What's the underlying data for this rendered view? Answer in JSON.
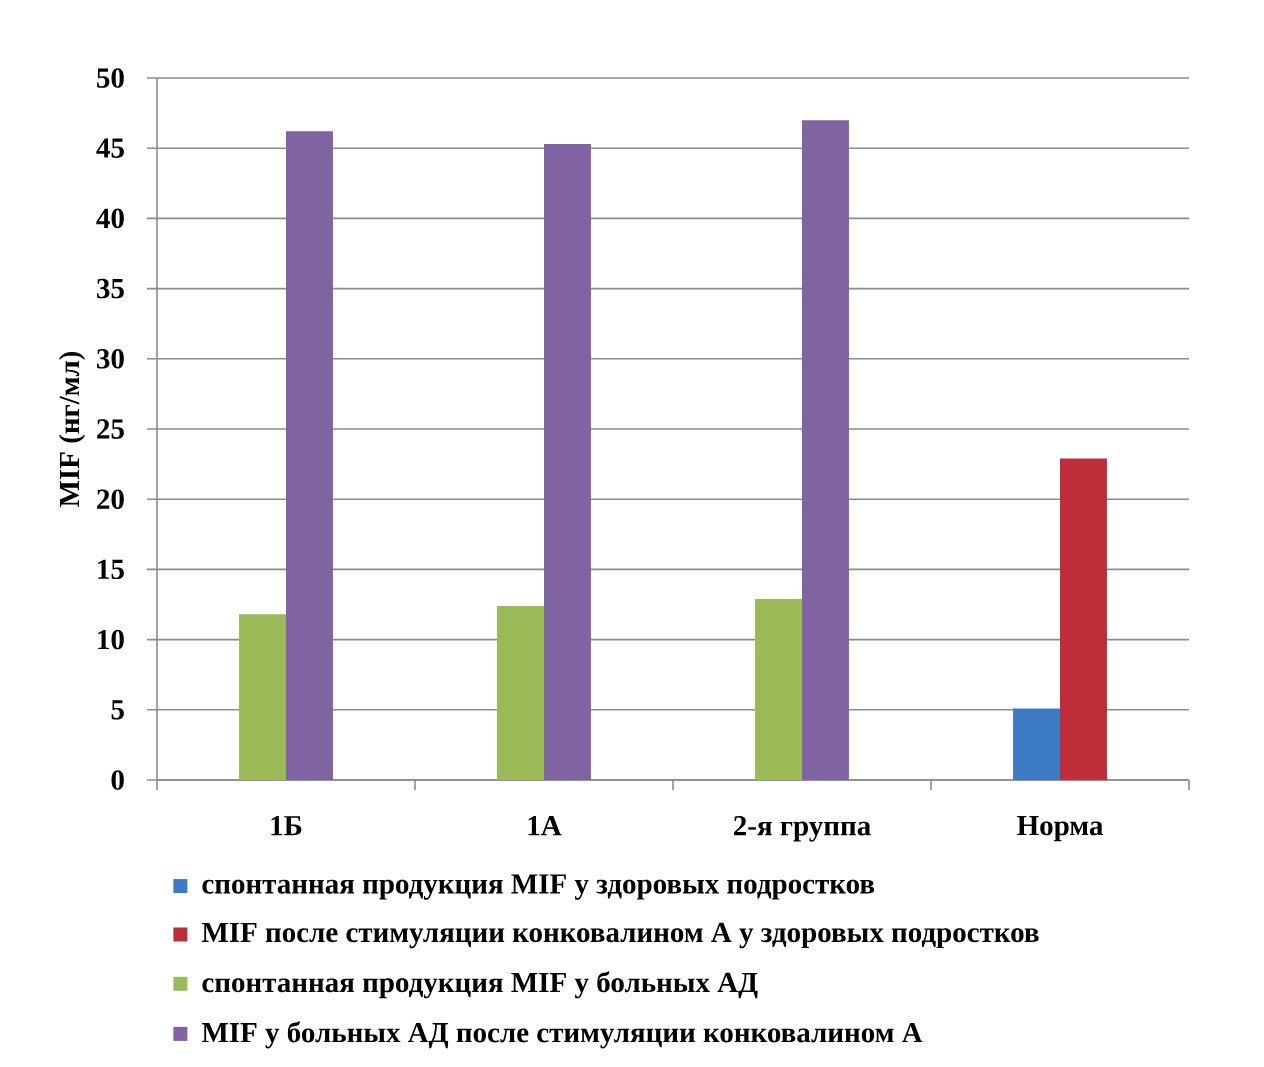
{
  "chart_data": {
    "type": "bar",
    "ylabel": "MIF (нг/мл)",
    "categories": [
      "1Б",
      "1А",
      "2-я группа",
      "Норма"
    ],
    "series": [
      {
        "name": "спонтанная продукция MIF у здоровых подростков",
        "color": "#3d7cc5",
        "values": [
          null,
          null,
          null,
          5.1
        ]
      },
      {
        "name": "MIF после стимуляции конковалином А у здоровых подростков",
        "color": "#be2d3a",
        "values": [
          null,
          null,
          null,
          22.9
        ]
      },
      {
        "name": "спонтанная продукция MIF у больных АД",
        "color": "#9bbb59",
        "values": [
          11.8,
          12.4,
          12.9,
          null
        ]
      },
      {
        "name": "MIF у больных АД после стимуляции конковалином А",
        "color": "#8064a2",
        "values": [
          46.2,
          45.3,
          47.0,
          null
        ]
      }
    ],
    "ylim": [
      0,
      50
    ],
    "yticks": [
      0,
      5,
      10,
      15,
      20,
      25,
      30,
      35,
      40,
      45,
      50
    ],
    "grid": "y",
    "legend": "bottom"
  }
}
